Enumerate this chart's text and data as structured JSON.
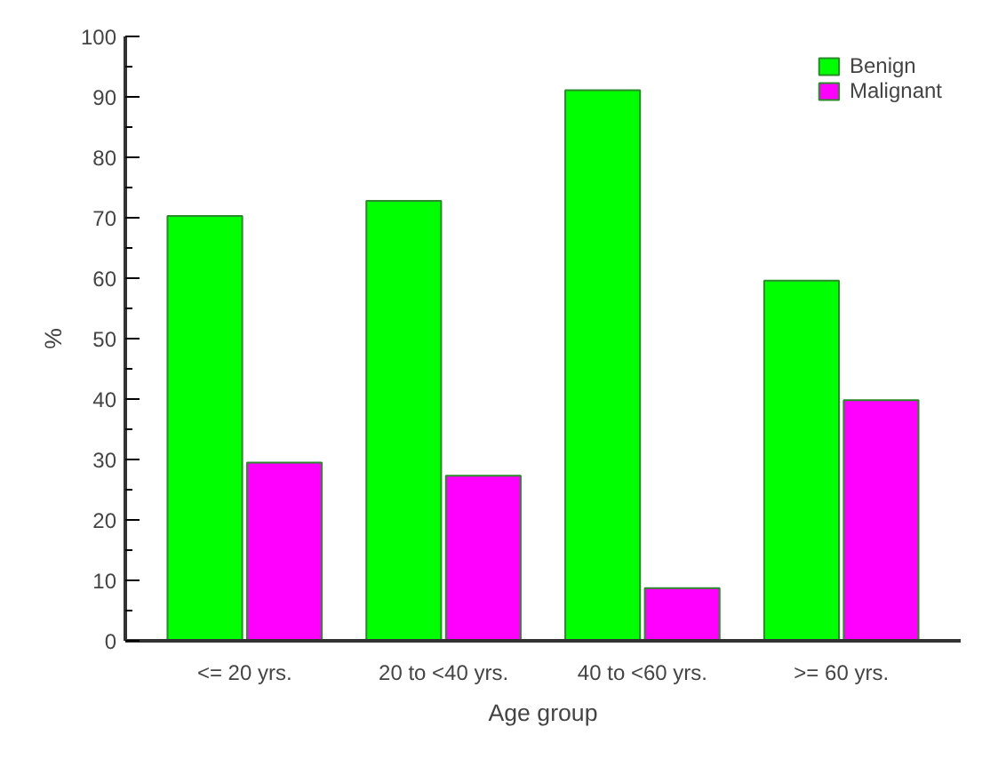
{
  "chart_data": {
    "type": "bar",
    "xlabel": "Age group",
    "ylabel": "%",
    "categories": [
      "<= 20 yrs.",
      "20 to <40 yrs.",
      "40 to <60 yrs.",
      ">= 60 yrs."
    ],
    "series": [
      {
        "name": "Benign",
        "color": "#00ff00",
        "values": [
          70.3,
          72.8,
          91.1,
          59.6
        ]
      },
      {
        "name": "Malignant",
        "color": "#ff00ff",
        "values": [
          29.5,
          27.3,
          8.7,
          39.8
        ]
      }
    ],
    "ylim": [
      0,
      100
    ],
    "yticks": [
      0,
      10,
      20,
      30,
      40,
      50,
      60,
      70,
      80,
      90,
      100
    ],
    "grid": false,
    "legend": "top right"
  }
}
